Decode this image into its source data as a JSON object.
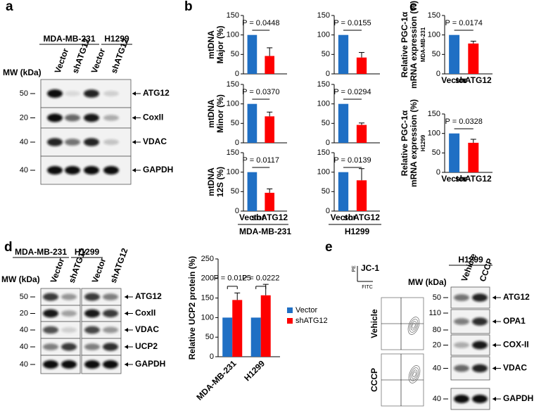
{
  "panel_labels": [
    "a",
    "b",
    "c",
    "d",
    "e"
  ],
  "chart_data": [
    {
      "type": "bar",
      "ylabel": [
        "mtDNA",
        "Major (%)"
      ],
      "categories": [
        null,
        null
      ],
      "values": [
        100,
        46
      ],
      "errors": [
        null,
        21
      ],
      "colors": [
        "#1f6fc4",
        "#fe0000"
      ],
      "ylim": [
        0,
        150
      ],
      "yticks": [
        0,
        50,
        100,
        150
      ],
      "annotation": "P = 0.0448"
    },
    {
      "type": "bar",
      "categories": [
        null,
        null
      ],
      "values": [
        100,
        42
      ],
      "errors": [
        null,
        13
      ],
      "colors": [
        "#1f6fc4",
        "#fe0000"
      ],
      "ylim": [
        0,
        150
      ],
      "yticks": [
        0,
        50,
        100,
        150
      ],
      "annotation": "P = 0.0155"
    },
    {
      "type": "bar",
      "ylabel": [
        "mtDNA",
        "Minor (%)"
      ],
      "categories": [
        null,
        null
      ],
      "values": [
        100,
        68
      ],
      "errors": [
        null,
        11
      ],
      "colors": [
        "#1f6fc4",
        "#fe0000"
      ],
      "ylim": [
        0,
        150
      ],
      "yticks": [
        0,
        50,
        100,
        150
      ],
      "annotation": "P = 0.0370"
    },
    {
      "type": "bar",
      "categories": [
        null,
        null
      ],
      "values": [
        100,
        46
      ],
      "errors": [
        null,
        5
      ],
      "colors": [
        "#1f6fc4",
        "#fe0000"
      ],
      "ylim": [
        0,
        150
      ],
      "yticks": [
        0,
        50,
        100,
        150
      ],
      "annotation": "P = 0.0294"
    },
    {
      "type": "bar",
      "ylabel": [
        "mtDNA",
        "12S (%)"
      ],
      "categories": [
        "Vector",
        "shATG12"
      ],
      "values": [
        100,
        47
      ],
      "errors": [
        null,
        10
      ],
      "colors": [
        "#1f6fc4",
        "#fe0000"
      ],
      "ylim": [
        0,
        150
      ],
      "yticks": [
        0,
        50,
        100,
        150
      ],
      "annotation": "P = 0.0117",
      "xlabel": "MDA-MB-231"
    },
    {
      "type": "bar",
      "categories": [
        "Vector",
        "shATG12"
      ],
      "values": [
        100,
        79
      ],
      "errors": [
        null,
        30
      ],
      "colors": [
        "#1f6fc4",
        "#fe0000"
      ],
      "ylim": [
        0,
        150
      ],
      "yticks": [
        0,
        50,
        100,
        150
      ],
      "annotation": "P = 0.0139",
      "xlabel": "H1299"
    },
    {
      "type": "bar",
      "ylabel": [
        "Relative PGC-1α",
        "mRNA expression (%)",
        "MDA-MB-231"
      ],
      "categories": [
        "Vector",
        "shATG12"
      ],
      "values": [
        100,
        78
      ],
      "errors": [
        null,
        6
      ],
      "colors": [
        "#1f6fc4",
        "#fe0000"
      ],
      "ylim": [
        0,
        150
      ],
      "yticks": [
        0,
        50,
        100,
        150
      ],
      "annotation": "P = 0.0174"
    },
    {
      "type": "bar",
      "ylabel": [
        "Relative PGC-1α",
        "mRNA expression (%)",
        "H1299"
      ],
      "categories": [
        "Vector",
        "shATG12"
      ],
      "values": [
        100,
        76
      ],
      "errors": [
        null,
        9
      ],
      "colors": [
        "#1f6fc4",
        "#fe0000"
      ],
      "ylim": [
        0,
        150
      ],
      "yticks": [
        0,
        50,
        100,
        150
      ],
      "annotation": "P = 0.0328"
    },
    {
      "type": "bar",
      "ylabel": [
        "Relative UCP2 protein (%)"
      ],
      "categories": [
        "MDA-MB-231",
        "H1299"
      ],
      "series": [
        {
          "name": "Vector",
          "color": "#1f6fc4",
          "values": [
            100,
            100
          ]
        },
        {
          "name": "shATG12",
          "color": "#fe0000",
          "values": [
            145,
            157
          ],
          "errors": [
            18,
            28
          ]
        }
      ],
      "ylim": [
        0,
        250
      ],
      "yticks": [
        0,
        50,
        100,
        150,
        200,
        250
      ],
      "annotations": [
        "P = 0.0125",
        "P = 0.0222"
      ],
      "legend": "right"
    }
  ],
  "blot_a": {
    "groups": [
      "MDA-MB-231",
      "H1299"
    ],
    "lanes": [
      "Vector",
      "shATG12",
      "Vector",
      "shATG12"
    ],
    "mw_title": "MW (kDa)",
    "rows": [
      {
        "protein": "ATG12",
        "mw": [
          50
        ]
      },
      {
        "protein": "CoxII",
        "mw": [
          20
        ]
      },
      {
        "protein": "VDAC",
        "mw": [
          40
        ]
      },
      {
        "protein": "GAPDH",
        "mw": [
          40
        ]
      }
    ]
  },
  "blot_d": {
    "groups": [
      "MDA-MB-231",
      "H1299"
    ],
    "lanes": [
      "Vector",
      "shATG12",
      "Vector",
      "shATG12"
    ],
    "mw_title": "MW (kDa)",
    "rows": [
      {
        "protein": "ATG12",
        "mw": [
          50
        ]
      },
      {
        "protein": "CoxII",
        "mw": [
          20
        ]
      },
      {
        "protein": "VDAC",
        "mw": [
          40
        ]
      },
      {
        "protein": "UCP2",
        "mw": [
          40
        ]
      },
      {
        "protein": "GAPDH",
        "mw": [
          40
        ]
      }
    ]
  },
  "flow_e": {
    "stain": "JC-1",
    "y_axis": "PE",
    "x_axis": "FITC",
    "conditions": [
      "Vehicle",
      "CCCP"
    ]
  },
  "blot_e": {
    "groups": [
      "H1299"
    ],
    "lanes": [
      "Vehicle",
      "CCCP"
    ],
    "mw_title": "MW (kDa)",
    "rows": [
      {
        "protein": "ATG12",
        "mw": [
          50
        ]
      },
      {
        "protein": "OPA1",
        "mw": [
          110,
          80
        ]
      },
      {
        "protein": "COX-II",
        "mw": [
          20
        ]
      },
      {
        "protein": "VDAC",
        "mw": [
          40
        ]
      },
      {
        "protein": "GAPDH",
        "mw": [
          40
        ]
      }
    ]
  }
}
